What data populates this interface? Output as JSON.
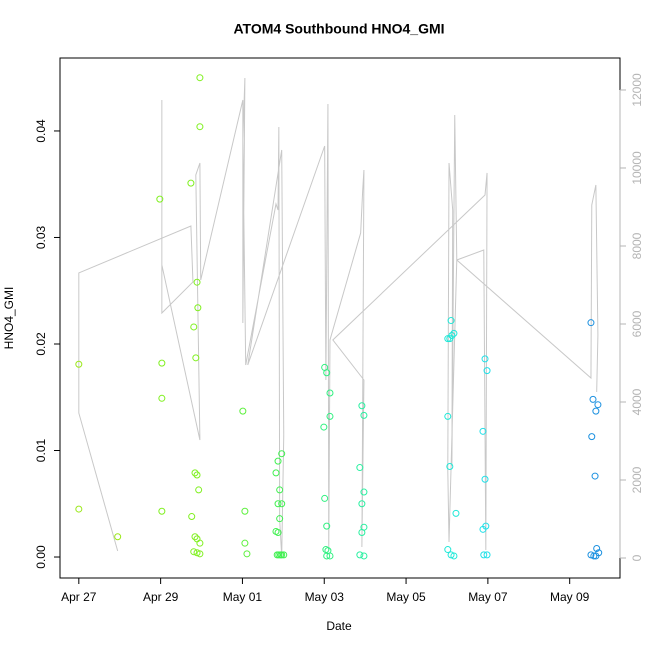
{
  "chart_data": {
    "type": "scatter",
    "title": "ATOM4 Southbound HNO4_GMI",
    "x_label": "Date",
    "y_label": "HNO4_GMI",
    "xlim": [
      -0.46,
      13.23
    ],
    "ylim": [
      -0.00197,
      0.04685
    ],
    "y2lim": [
      -513,
      12820
    ],
    "xticks": [
      {
        "value": 0,
        "label": "Apr 27"
      },
      {
        "value": 2,
        "label": "Apr 29"
      },
      {
        "value": 4,
        "label": "May 01"
      },
      {
        "value": 6,
        "label": "May 03"
      },
      {
        "value": 8,
        "label": "May 05"
      },
      {
        "value": 10,
        "label": "May 07"
      },
      {
        "value": 12,
        "label": "May 09"
      }
    ],
    "yticks": [
      {
        "value": 0,
        "label": "0.00"
      },
      {
        "value": 0.01,
        "label": "0.01"
      },
      {
        "value": 0.02,
        "label": "0.02"
      },
      {
        "value": 0.03,
        "label": "0.03"
      },
      {
        "value": 0.04,
        "label": "0.04"
      }
    ],
    "y2ticks": [
      0,
      2000,
      4000,
      6000,
      8000,
      10000,
      12000
    ],
    "y2_color": "#b4b4b4",
    "series": [
      {
        "color": "#9be81a",
        "x": [
          0,
          0,
          0.95
        ],
        "values": [
          0.0181,
          0.0045,
          0.0019
        ]
      },
      {
        "color": "#80f020",
        "x": [
          1.98,
          2.03,
          2.03,
          2.03,
          2.74,
          2.96,
          2.96,
          2.89,
          2.91,
          2.81,
          2.86,
          2.84,
          2.89,
          2.93,
          2.76,
          2.84,
          2.89,
          2.96,
          2.81,
          2.89,
          2.96
        ],
        "values": [
          0.0336,
          0.0182,
          0.0149,
          0.0043,
          0.0351,
          0.045,
          0.0404,
          0.0258,
          0.0234,
          0.0216,
          0.0187,
          0.0079,
          0.0077,
          0.0063,
          0.0038,
          0.0019,
          0.0017,
          0.0013,
          0.0005,
          0.0004,
          0.0003
        ]
      },
      {
        "color": "#5cf03c",
        "x": [
          4.01,
          4.06,
          4.06,
          4.11
        ],
        "values": [
          0.0137,
          0.0043,
          0.0013,
          0.0003
        ]
      },
      {
        "color": "#40f050",
        "x": [
          4.96,
          4.87,
          4.82,
          4.91,
          4.87,
          4.96,
          4.91,
          4.82,
          4.87,
          4.85,
          4.89,
          4.93,
          4.96,
          5.01
        ],
        "values": [
          0.0097,
          0.009,
          0.0079,
          0.0063,
          0.005,
          0.005,
          0.0036,
          0.0024,
          0.0023,
          0.0002,
          0.0002,
          0.0002,
          0.0002,
          0.0002
        ]
      },
      {
        "color": "#30f080",
        "x": [
          6.01,
          6.06,
          6.14,
          6.14,
          5.99,
          6.01,
          6.06,
          6.04,
          6.09,
          6.06,
          6.14
        ],
        "values": [
          0.0178,
          0.0173,
          0.0154,
          0.0132,
          0.0122,
          0.0055,
          0.0029,
          0.0007,
          0.0006,
          0.0001,
          0.0001
        ]
      },
      {
        "color": "#28f0a0",
        "x": [
          6.92,
          6.97,
          6.87,
          6.97,
          6.92,
          6.97,
          6.92,
          6.87,
          6.97
        ],
        "values": [
          0.0142,
          0.0133,
          0.0084,
          0.0061,
          0.005,
          0.0028,
          0.0023,
          0.0002,
          0.0001
        ]
      },
      {
        "color": "#20e8d8",
        "x": [
          9.1,
          9.17,
          9.12,
          9.02,
          9.07,
          9.02,
          9.07,
          9.22,
          9.02,
          9.1,
          9.17
        ],
        "values": [
          0.0222,
          0.021,
          0.0208,
          0.0205,
          0.0205,
          0.0132,
          0.0085,
          0.0041,
          0.0007,
          0.0002,
          0.0001
        ]
      },
      {
        "color": "#20e0e8",
        "x": [
          9.93,
          9.98,
          9.88,
          9.93,
          9.95,
          9.88,
          9.9,
          9.98
        ],
        "values": [
          0.0186,
          0.0175,
          0.0118,
          0.0073,
          0.0029,
          0.0026,
          0.0002,
          0.0002
        ]
      },
      {
        "color": "#1a90e0",
        "x": [
          12.52,
          12.57,
          12.64,
          12.69,
          12.54,
          12.62,
          12.66,
          12.71,
          12.52,
          12.59,
          12.64
        ],
        "values": [
          0.022,
          0.0148,
          0.0137,
          0.0143,
          0.0113,
          0.0076,
          0.0008,
          0.0004,
          0.0002,
          0.0001,
          0.0001
        ]
      },
      {
        "type": "line",
        "axis": "y2",
        "color": "#c8c8c8",
        "x": [
          0.95,
          0,
          0,
          2.74,
          2.79,
          2.03,
          2.03,
          2.03,
          2.96,
          2.86,
          2.96,
          2.98,
          4.01,
          4.01,
          4.06,
          4.01,
          4.08,
          4.82,
          4.87,
          4.89,
          4.91,
          4.96,
          5.01,
          4.96,
          4.13,
          6.01,
          6.04,
          6.09,
          6.11,
          6.14,
          6.89,
          6.94,
          6.97,
          6.92,
          6.97,
          6.21,
          9.93,
          9.98,
          9.95,
          9.9,
          9.24,
          9.19,
          9.12,
          9.14,
          9.05,
          9.02,
          9.05,
          9.24,
          12.52,
          12.54,
          12.59,
          12.64,
          12.69,
          12.66
        ],
        "values": [
          179,
          3718,
          7308,
          8513,
          7077,
          6282,
          11744,
          7513,
          3026,
          9821,
          10128,
          7128,
          11744,
          6026,
          12308,
          10718,
          4949,
          9077,
          8923,
          11051,
          974,
          51,
          3154,
          10462,
          4949,
          10564,
          4564,
          11641,
          205,
          5590,
          8333,
          9436,
          9949,
          282,
          4564,
          5590,
          9308,
          9872,
          205,
          7897,
          7641,
          11359,
          2359,
          8923,
          10128,
          2256,
          410,
          7641,
          4615,
          9051,
          9308,
          9564,
          5718,
          4256
        ]
      }
    ]
  }
}
